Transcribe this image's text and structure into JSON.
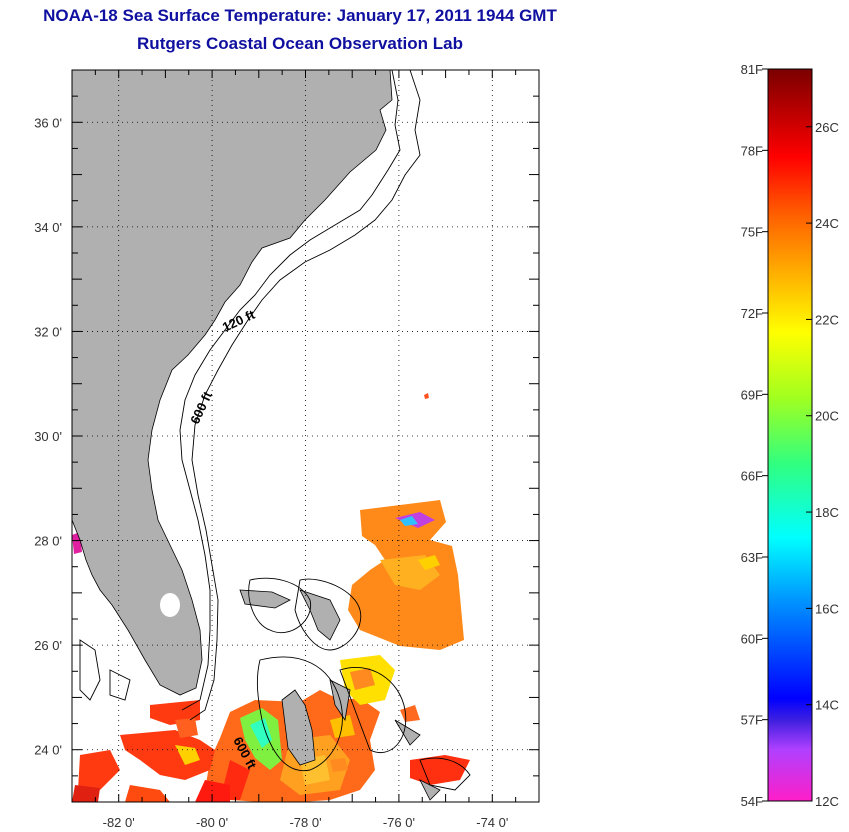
{
  "header": {
    "title": "NOAA-18 Sea Surface Temperature:  January 17, 2011 1944 GMT",
    "subtitle": "Rutgers Coastal Ocean Observation Lab"
  },
  "map": {
    "lon_range": [
      -83,
      -73
    ],
    "lat_range": [
      23,
      37
    ],
    "lon_ticks": [
      {
        "value": -82,
        "label": "-82 0'"
      },
      {
        "value": -80,
        "label": "-80 0'"
      },
      {
        "value": -78,
        "label": "-78 0'"
      },
      {
        "value": -76,
        "label": "-76 0'"
      },
      {
        "value": -74,
        "label": "-74 0'"
      }
    ],
    "lat_ticks": [
      {
        "value": 36,
        "label": "36 0'"
      },
      {
        "value": 34,
        "label": "34 0'"
      },
      {
        "value": 32,
        "label": "32 0'"
      },
      {
        "value": 30,
        "label": "30 0'"
      },
      {
        "value": 28,
        "label": "28 0'"
      },
      {
        "value": 26,
        "label": "26 0'"
      },
      {
        "value": 24,
        "label": "24 0'"
      }
    ],
    "contour_labels": [
      "120 ft",
      "600 ft",
      "600 ft"
    ],
    "colors": {
      "land": "#b0b0b0",
      "ocean": "#ffffff",
      "contour": "#000000",
      "grid": "#000000"
    }
  },
  "colorbar": {
    "fahrenheit_labels": [
      "81F",
      "78F",
      "75F",
      "72F",
      "69F",
      "66F",
      "63F",
      "60F",
      "57F",
      "54F"
    ],
    "celsius_labels": [
      "26C",
      "24C",
      "22C",
      "20C",
      "18C",
      "16C",
      "14C",
      "12C"
    ],
    "range_f": [
      54,
      81
    ],
    "range_c": [
      12,
      27.2
    ],
    "stops": [
      "#ff1ec8",
      "#8a2be2",
      "#0000ff",
      "#0080ff",
      "#00ffff",
      "#00ff80",
      "#80ff00",
      "#ffff00",
      "#ffb000",
      "#ff6000",
      "#ff0000",
      "#8b0000"
    ]
  }
}
